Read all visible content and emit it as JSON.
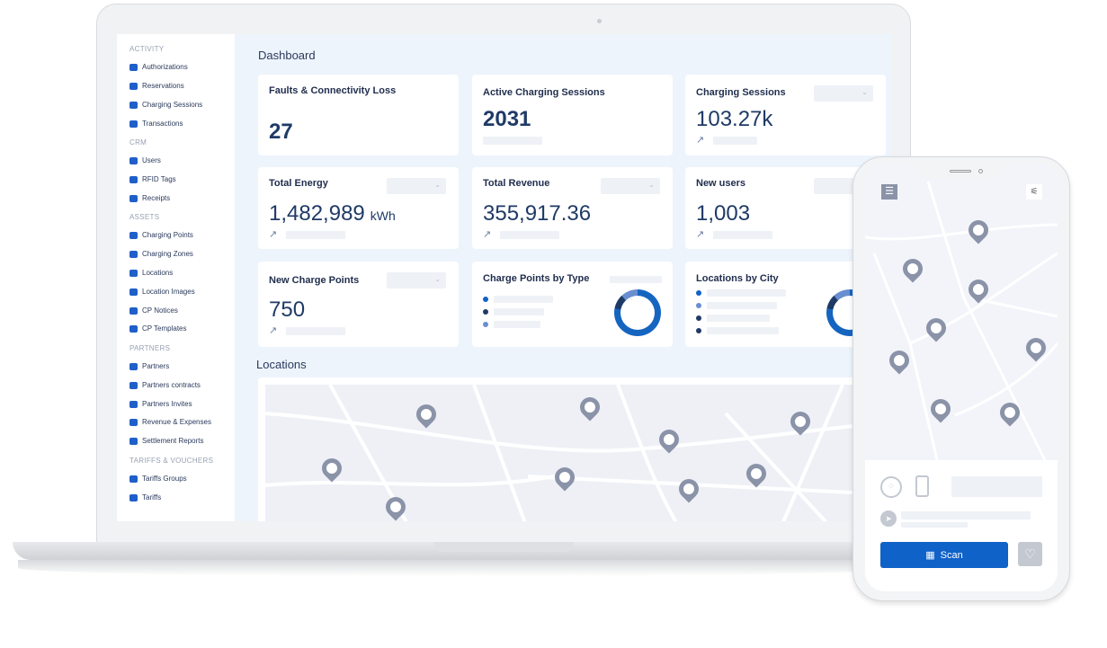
{
  "sidebar": {
    "sections": [
      {
        "title": "ACTIVITY",
        "items": [
          "Authorizations",
          "Reservations",
          "Charging Sessions",
          "Transactions"
        ]
      },
      {
        "title": "CRM",
        "items": [
          "Users",
          "RFID Tags",
          "Receipts"
        ]
      },
      {
        "title": "ASSETS",
        "items": [
          "Charging Points",
          "Charging Zones",
          "Locations",
          "Location Images",
          "CP Notices",
          "CP Templates"
        ]
      },
      {
        "title": "PARTNERS",
        "items": [
          "Partners",
          "Partners contracts",
          "Partners Invites",
          "Revenue & Expenses",
          "Settlement Reports"
        ]
      },
      {
        "title": "TARIFFS & VOUCHERS",
        "items": [
          "Tariffs Groups",
          "Tariffs"
        ]
      }
    ]
  },
  "dashboard": {
    "title": "Dashboard",
    "cards": {
      "faults": {
        "title": "Faults & Connectivity Loss",
        "value": "27"
      },
      "active": {
        "title": "Active Charging Sessions",
        "value": "2031"
      },
      "sessions": {
        "title": "Charging Sessions",
        "value": "103.27k"
      },
      "energy": {
        "title": "Total Energy",
        "value": "1,482,989",
        "unit": "kWh"
      },
      "revenue": {
        "title": "Total Revenue",
        "value": "355,917.36"
      },
      "users": {
        "title": "New users",
        "value": "1,003"
      },
      "newcp": {
        "title": "New Charge Points",
        "value": "750"
      },
      "cptype": {
        "title": "Charge Points by Type"
      },
      "city": {
        "title": "Locations by City"
      }
    },
    "locations_title": "Locations"
  },
  "colors": {
    "accent": "#0f62c8",
    "dark": "#1f3a66",
    "light": "#6a8fd0",
    "pin": "#8a93a8"
  },
  "phone": {
    "scan_label": "Scan",
    "icons": [
      "menu-icon",
      "filter-icon",
      "type2-connector-icon",
      "ccs-connector-icon",
      "navigation-icon",
      "qr-code-icon",
      "heart-icon"
    ]
  }
}
